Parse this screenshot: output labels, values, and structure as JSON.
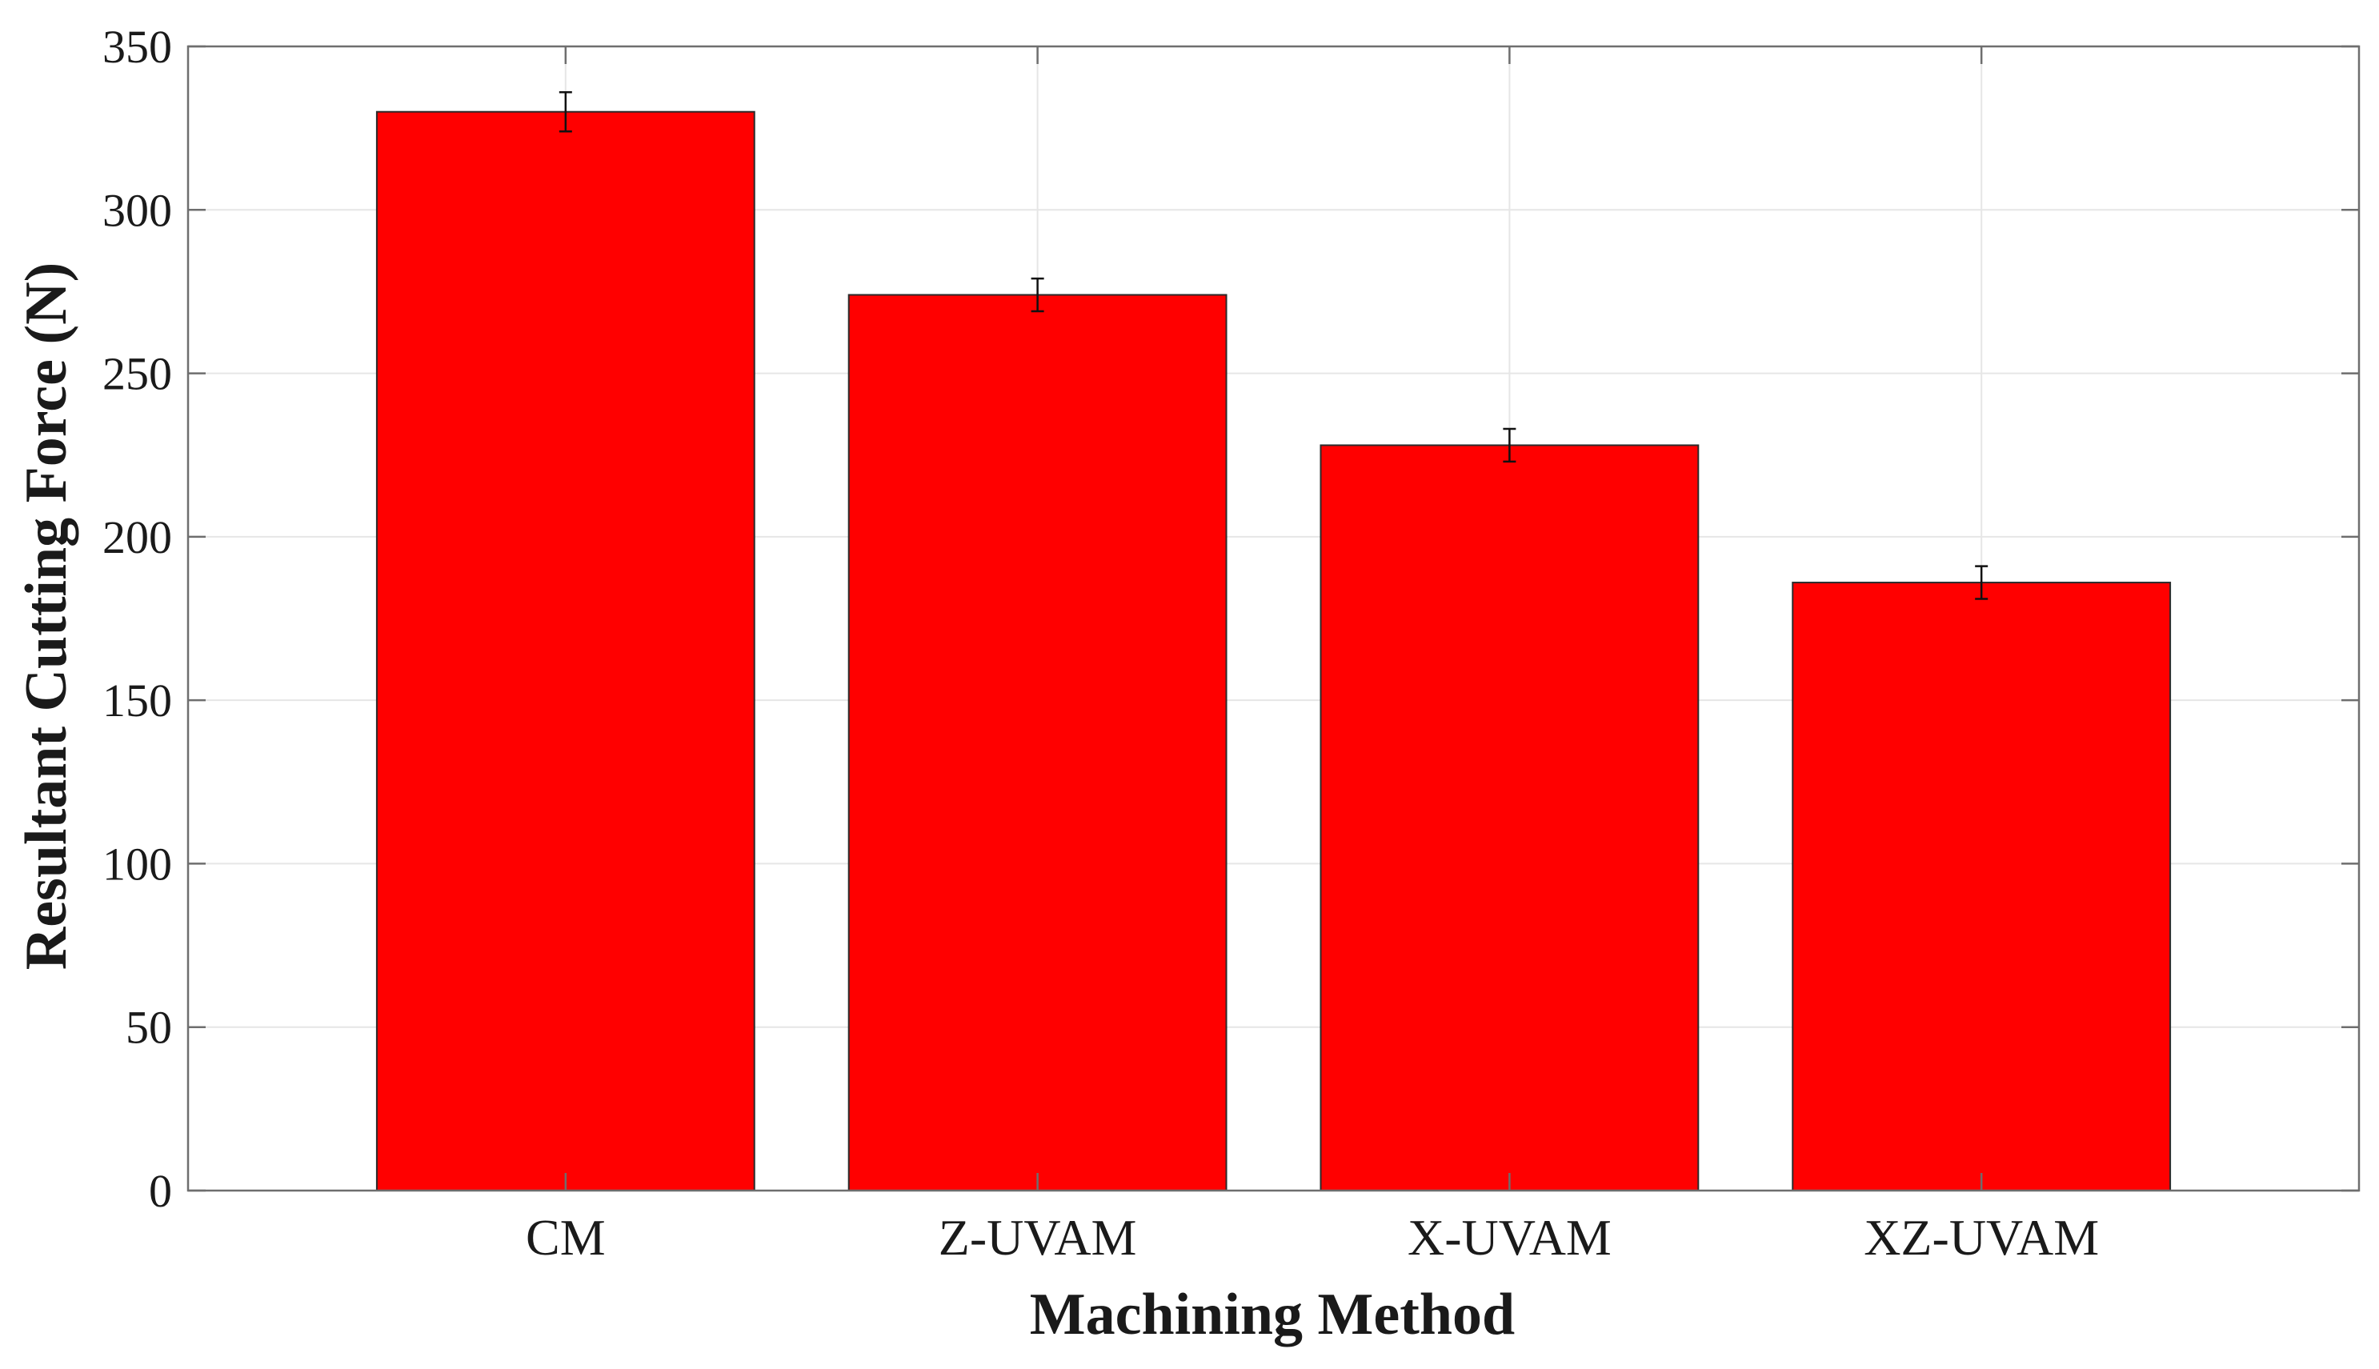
{
  "chart_data": {
    "type": "bar",
    "title": "",
    "xlabel": "Machining Method",
    "ylabel": "Resultant Cutting Force (N)",
    "categories": [
      "CM",
      "Z-UVAM",
      "X-UVAM",
      "XZ-UVAM"
    ],
    "values": [
      330,
      274,
      228,
      186
    ],
    "error": [
      6,
      5,
      5,
      5
    ],
    "ylim": [
      0,
      350
    ],
    "yticks": [
      "0",
      "50",
      "100",
      "150",
      "200",
      "250",
      "300",
      "350"
    ],
    "grid": true,
    "legend": "none",
    "colors": {
      "bar": "#ff0000",
      "bar_edge": "#2b2b2b",
      "grid": "#e6e6e6",
      "axis": "#6e6e6e"
    }
  }
}
